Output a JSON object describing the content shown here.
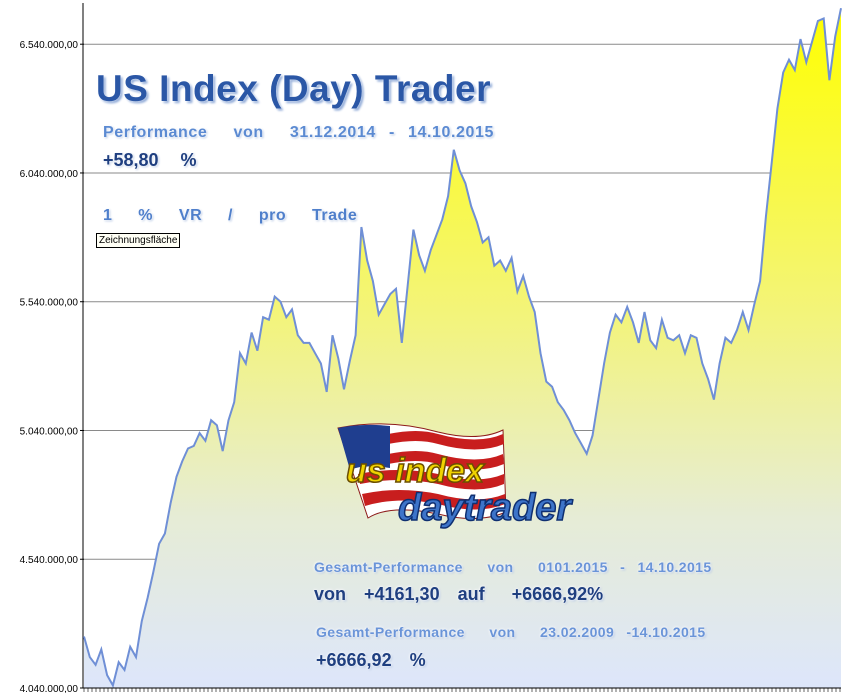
{
  "chart_data": {
    "type": "area",
    "ylim": [
      4040000,
      6700000
    ],
    "yticks": [
      4040000,
      4540000,
      5040000,
      5540000,
      6040000,
      6540000
    ],
    "ytick_labels": [
      "4.040.000,00",
      "4.540.000,00",
      "5.040.000,00",
      "5.540.000,00",
      "6.040.000,00",
      "6.540.000,00"
    ],
    "grid": "horizontal",
    "legend": "none",
    "series": [
      {
        "color": "#6f8fd6",
        "fill_top": "#ffff00",
        "fill_bottom": "#dfe8fb",
        "values": [
          4240000,
          4160000,
          4130000,
          4190000,
          4090000,
          4050000,
          4140000,
          4110000,
          4200000,
          4160000,
          4300000,
          4390000,
          4490000,
          4600000,
          4640000,
          4760000,
          4860000,
          4920000,
          4970000,
          4980000,
          5030000,
          5000000,
          5080000,
          5060000,
          4960000,
          5080000,
          5150000,
          5340000,
          5300000,
          5420000,
          5350000,
          5480000,
          5470000,
          5560000,
          5540000,
          5480000,
          5510000,
          5410000,
          5380000,
          5380000,
          5340000,
          5300000,
          5190000,
          5410000,
          5320000,
          5200000,
          5310000,
          5410000,
          5830000,
          5700000,
          5620000,
          5490000,
          5530000,
          5570000,
          5590000,
          5380000,
          5600000,
          5820000,
          5720000,
          5660000,
          5740000,
          5800000,
          5860000,
          5950000,
          6130000,
          6050000,
          6000000,
          5910000,
          5850000,
          5770000,
          5790000,
          5680000,
          5700000,
          5660000,
          5710000,
          5580000,
          5640000,
          5560000,
          5500000,
          5340000,
          5230000,
          5210000,
          5150000,
          5120000,
          5080000,
          5030000,
          4990000,
          4950000,
          5020000,
          5160000,
          5300000,
          5420000,
          5490000,
          5460000,
          5520000,
          5460000,
          5380000,
          5500000,
          5390000,
          5360000,
          5470000,
          5400000,
          5390000,
          5410000,
          5340000,
          5410000,
          5400000,
          5300000,
          5240000,
          5160000,
          5300000,
          5400000,
          5380000,
          5430000,
          5500000,
          5430000,
          5530000,
          5620000,
          5870000,
          6080000,
          6290000,
          6430000,
          6480000,
          6440000,
          6560000,
          6470000,
          6550000,
          6630000,
          6640000,
          6400000,
          6570000,
          6680000
        ]
      }
    ]
  },
  "overlay": {
    "title": "US Index (Day) Trader",
    "performance_period": "Performance  von  31.12.2014 - 14.10.2015",
    "performance_value": "+58,80  %",
    "risk": "1  %  VR  /  pro  Trade",
    "tooltip": "Zeichnungsfläche",
    "gesamt1_label": "Gesamt-Performance  von  0101.2015 - 14.10.2015",
    "gesamt1_value": "von  +4161,30  auf   +6666,92%",
    "gesamt2_label": "Gesamt-Performance  von  23.02.2009 -14.10.2015",
    "gesamt2_value": "+6666,92  %"
  },
  "logo": {
    "word1": "us index",
    "word2": "daytrader",
    "flag_colors": {
      "red": "#c81e1e",
      "white": "#ffffff",
      "blue": "#1f3e8f"
    }
  }
}
